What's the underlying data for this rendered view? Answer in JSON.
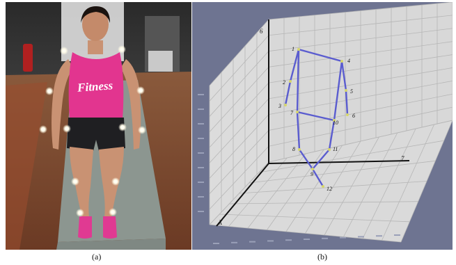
{
  "captions": {
    "a": "(a)",
    "b": "(b)"
  },
  "photo": {
    "shirt_text": "Fitness"
  },
  "plot": {
    "axis_labels": {
      "z": "6",
      "y": "7",
      "x": "X"
    },
    "joints": [
      {
        "id": "1",
        "label": "1"
      },
      {
        "id": "2",
        "label": "2"
      },
      {
        "id": "3",
        "label": "3"
      },
      {
        "id": "4",
        "label": "4"
      },
      {
        "id": "5",
        "label": "5"
      },
      {
        "id": "6",
        "label": "6"
      },
      {
        "id": "7",
        "label": "7"
      },
      {
        "id": "8",
        "label": "8"
      },
      {
        "id": "9",
        "label": "9"
      },
      {
        "id": "10",
        "label": "10"
      },
      {
        "id": "11",
        "label": "11"
      },
      {
        "id": "12",
        "label": "12"
      }
    ],
    "segments": [
      [
        "1",
        "4"
      ],
      [
        "1",
        "2"
      ],
      [
        "2",
        "3"
      ],
      [
        "1",
        "7"
      ],
      [
        "7",
        "10"
      ],
      [
        "4",
        "10"
      ],
      [
        "4",
        "5"
      ],
      [
        "5",
        "6"
      ],
      [
        "7",
        "8"
      ],
      [
        "8",
        "9"
      ],
      [
        "10",
        "11"
      ],
      [
        "11",
        "9"
      ],
      [
        "9",
        "12"
      ]
    ],
    "colors": {
      "background": "#6e7491",
      "wall": "#d8d8d8",
      "grid": "#b4b4b4",
      "skeleton": "#5a5ccf",
      "marker": "#d6d66a"
    }
  }
}
